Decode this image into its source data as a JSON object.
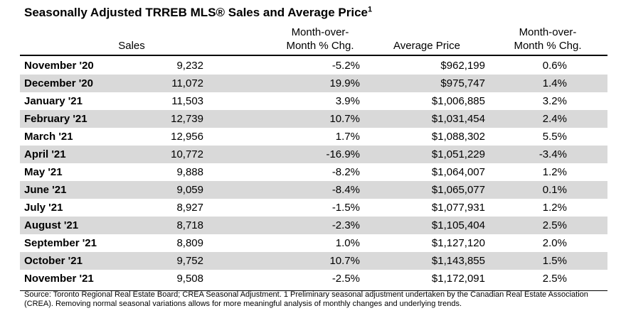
{
  "title": "Seasonally Adjusted TRREB MLS® Sales and Average Price",
  "title_sup": "1",
  "headers": {
    "sales": "Sales",
    "mom_sales_line1": "Month-over-",
    "mom_sales_line2": "Month % Chg.",
    "avg_price": "Average Price",
    "mom_price_line1": "Month-over-",
    "mom_price_line2": "Month % Chg."
  },
  "rows": [
    {
      "month": "November '20",
      "sales": "9,232",
      "sales_chg": "-5.2%",
      "price": "$962,199",
      "price_chg": "0.6%"
    },
    {
      "month": "December '20",
      "sales": "11,072",
      "sales_chg": "19.9%",
      "price": "$975,747",
      "price_chg": "1.4%"
    },
    {
      "month": "January '21",
      "sales": "11,503",
      "sales_chg": "3.9%",
      "price": "$1,006,885",
      "price_chg": "3.2%"
    },
    {
      "month": "February '21",
      "sales": "12,739",
      "sales_chg": "10.7%",
      "price": "$1,031,454",
      "price_chg": "2.4%"
    },
    {
      "month": "March '21",
      "sales": "12,956",
      "sales_chg": "1.7%",
      "price": "$1,088,302",
      "price_chg": "5.5%"
    },
    {
      "month": "April '21",
      "sales": "10,772",
      "sales_chg": "-16.9%",
      "price": "$1,051,229",
      "price_chg": "-3.4%"
    },
    {
      "month": "May '21",
      "sales": "9,888",
      "sales_chg": "-8.2%",
      "price": "$1,064,007",
      "price_chg": "1.2%"
    },
    {
      "month": "June '21",
      "sales": "9,059",
      "sales_chg": "-8.4%",
      "price": "$1,065,077",
      "price_chg": "0.1%"
    },
    {
      "month": "July '21",
      "sales": "8,927",
      "sales_chg": "-1.5%",
      "price": "$1,077,931",
      "price_chg": "1.2%"
    },
    {
      "month": "August '21",
      "sales": "8,718",
      "sales_chg": "-2.3%",
      "price": "$1,105,404",
      "price_chg": "2.5%"
    },
    {
      "month": "September '21",
      "sales": "8,809",
      "sales_chg": "1.0%",
      "price": "$1,127,120",
      "price_chg": "2.0%"
    },
    {
      "month": "October '21",
      "sales": "9,752",
      "sales_chg": "10.7%",
      "price": "$1,143,855",
      "price_chg": "1.5%"
    },
    {
      "month": "November '21",
      "sales": "9,508",
      "sales_chg": "-2.5%",
      "price": "$1,172,091",
      "price_chg": "2.5%"
    }
  ],
  "colors": {
    "shade": "#d9d9d9",
    "plain": "#ffffff"
  },
  "footnote": "Source: Toronto Regional Real Estate Board; CREA Seasonal Adjustment. 1 Preliminary seasonal adjustment undertaken by the Canadian Real Estate Association (CREA).  Removing normal seasonal variations allows for more meaningful analysis of monthly changes and underlying trends."
}
